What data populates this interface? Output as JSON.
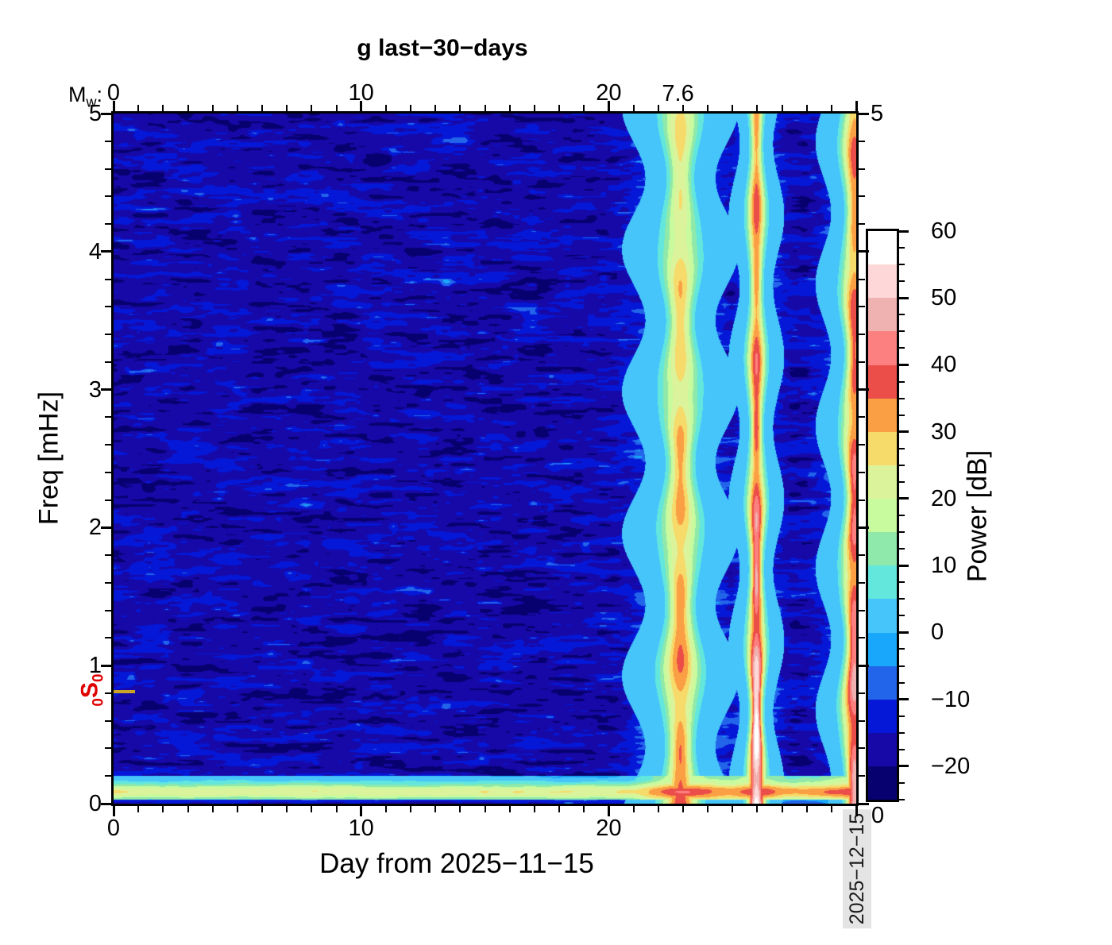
{
  "title": "g last−30−days",
  "top_axis": {
    "prefix_main": "M",
    "prefix_sub": "w",
    "prefix_colon": ":",
    "event_label": "7.6",
    "event_label_day": 22.8
  },
  "x_axis": {
    "label": "Day from 2025−11−15"
  },
  "y_axis": {
    "label": "Freq [mHz]"
  },
  "right_axis": {
    "top_label": "5",
    "bottom_label": "0"
  },
  "axes": {
    "x": {
      "min": 0,
      "max": 30,
      "minor_step": 1,
      "major_step": 10,
      "labeled": [
        0,
        10,
        20
      ]
    },
    "y": {
      "min": 0,
      "max": 5,
      "minor_step": 0.2,
      "major_step": 1,
      "labeled": [
        0,
        1,
        2,
        3,
        4,
        5
      ]
    }
  },
  "colorbar": {
    "label": "Power [dB]",
    "min_db": -25,
    "max_db": 60,
    "band_db": 5,
    "minor_tick_db": 2.5,
    "labeled_ticks_db": [
      -20,
      -10,
      0,
      10,
      20,
      30,
      40,
      50,
      60
    ],
    "colors": [
      "#070170",
      "#1708a8",
      "#0518d7",
      "#2264ea",
      "#18a7fa",
      "#46c5fa",
      "#63e7dc",
      "#8ee9ab",
      "#c8fa9e",
      "#dbf49b",
      "#f6da6a",
      "#fb9f44",
      "#eb4d49",
      "#fc807f",
      "#efb2b0",
      "#fed8d8",
      "#ffffff"
    ]
  },
  "annotations": {
    "mode_sub_pre": "0",
    "mode_main": "S",
    "mode_sub_post": "0",
    "mode_freq_mhz": 0.81,
    "mode_color": "#e00000",
    "marker_color": "#c9a227",
    "date_label": "2025−12−15"
  },
  "chart_data": {
    "type": "heatmap",
    "title": "g last−30−days",
    "xlabel": "Day from 2025−11−15",
    "ylabel": "Freq [mHz]",
    "zlabel": "Power [dB]",
    "x_range_days": [
      0,
      30
    ],
    "y_range_mhz": [
      0,
      5
    ],
    "z_range_db": [
      -25,
      60
    ],
    "z_step_db": 5,
    "background": {
      "base_db": -18,
      "noise_amp_db": 16,
      "fleck_threshold": 0.82,
      "fleck_gain_db": 45
    },
    "events": [
      {
        "name": "earthquake-day-23",
        "day": 22.9,
        "magnitude_label": "7.6",
        "peak_db_low_freq": 35,
        "peak_db_high_freq": 24,
        "freq_falloff": 1.0,
        "width_days": 0.42,
        "halo_db_lift": 13,
        "halo_width_mult": 2.8,
        "phase": 1.3
      },
      {
        "name": "earthquake-day-26",
        "day": 25.97,
        "peak_db_low_freq": 62,
        "peak_db_high_freq": 34,
        "freq_falloff": 2.6,
        "width_days": 0.2,
        "halo_db_lift": 12,
        "halo_width_mult": 3.0,
        "phase": 4.1
      },
      {
        "name": "earthquake-day-30",
        "day": 29.93,
        "peak_db_low_freq": 47,
        "peak_db_high_freq": 33,
        "freq_falloff": 1.6,
        "width_days": 0.28,
        "halo_db_lift": 13,
        "halo_width_mult": 3.0,
        "phase": 2.2
      }
    ],
    "bottom_band": {
      "center_freq_mhz": 0.085,
      "sigma_mhz": 0.06,
      "peak_db": 24,
      "boost_db": 8,
      "boost_from_day": 21,
      "dark_below_mhz": 0.028
    },
    "mode_marker": {
      "label": "0S0",
      "freq_mhz": 0.81
    }
  }
}
